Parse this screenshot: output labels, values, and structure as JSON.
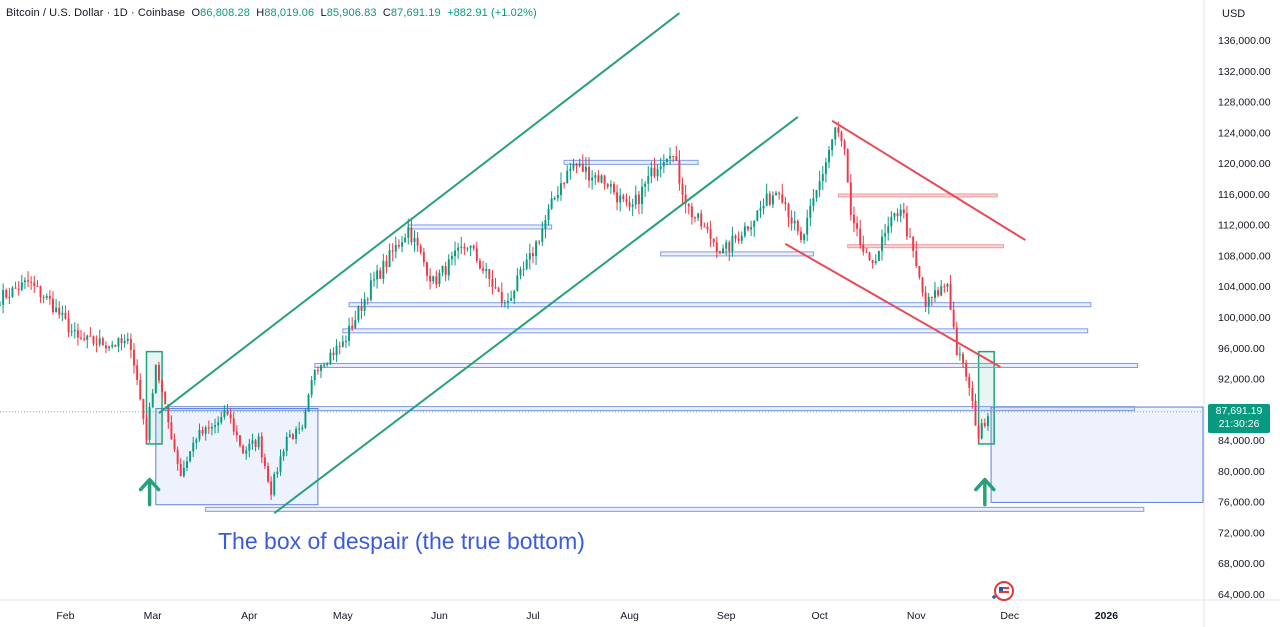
{
  "header": {
    "symbol": "Bitcoin / U.S. Dollar · 1D · Coinbase",
    "o_label": "O",
    "o_value": "86,808.28",
    "h_label": "H",
    "h_value": "88,019.06",
    "l_label": "L",
    "l_value": "85,906.83",
    "c_label": "C",
    "c_value": "87,691.19",
    "change": "+882.91 (+1.02%)"
  },
  "currency": "USD",
  "price_tag": {
    "price": "87,691.19",
    "countdown": "21:30:26"
  },
  "annotation": "The box of despair (the true bottom)",
  "colors": {
    "up": "#089981",
    "down": "#f23645",
    "channel": "#26a17b",
    "wedge": "#e84b55",
    "zone": "#5b7fe0"
  },
  "chart_data": {
    "type": "candlestick",
    "title": "",
    "xlabel": "",
    "ylabel": "",
    "ylim": [
      62000,
      140000
    ],
    "y_ticks": [
      "136,000.00",
      "132,000.00",
      "128,000.00",
      "124,000.00",
      "120,000.00",
      "116,000.00",
      "112,000.00",
      "108,000.00",
      "104,000.00",
      "100,000.00",
      "96,000.00",
      "92,000.00",
      "88,000.00",
      "84,000.00",
      "80,000.00",
      "76,000.00",
      "72,000.00",
      "68,000.00",
      "64,000.00"
    ],
    "y_tick_values": [
      136000,
      132000,
      128000,
      124000,
      120000,
      116000,
      112000,
      108000,
      104000,
      100000,
      96000,
      92000,
      88000,
      84000,
      80000,
      76000,
      72000,
      68000,
      64000
    ],
    "x_ticks": [
      "Feb",
      "Mar",
      "Apr",
      "May",
      "Jun",
      "Jul",
      "Aug",
      "Sep",
      "Oct",
      "Nov",
      "Dec",
      "2026"
    ],
    "x_tick_dates": [
      "2025-02-01",
      "2025-03-01",
      "2025-04-01",
      "2025-05-01",
      "2025-06-01",
      "2025-07-01",
      "2025-08-01",
      "2025-09-01",
      "2025-10-01",
      "2025-11-01",
      "2025-12-01",
      "2026-01-01"
    ],
    "x_range": [
      "2025-01-11",
      "2026-02-01"
    ],
    "grid": false,
    "close_path": [
      [
        "2025-01-11",
        102500
      ],
      [
        "2025-01-20",
        104500
      ],
      [
        "2025-01-27",
        102000
      ],
      [
        "2025-02-05",
        97000
      ],
      [
        "2025-02-15",
        96500
      ],
      [
        "2025-02-22",
        96500
      ],
      [
        "2025-02-27",
        84500
      ],
      [
        "2025-03-02",
        94000
      ],
      [
        "2025-03-05",
        88000
      ],
      [
        "2025-03-10",
        79500
      ],
      [
        "2025-03-15",
        84500
      ],
      [
        "2025-03-20",
        85500
      ],
      [
        "2025-03-25",
        87500
      ],
      [
        "2025-03-30",
        82500
      ],
      [
        "2025-04-04",
        84000
      ],
      [
        "2025-04-08",
        77500
      ],
      [
        "2025-04-13",
        84500
      ],
      [
        "2025-04-18",
        85000
      ],
      [
        "2025-04-22",
        93500
      ],
      [
        "2025-05-01",
        96500
      ],
      [
        "2025-05-10",
        104000
      ],
      [
        "2025-05-22",
        111500
      ],
      [
        "2025-05-30",
        104500
      ],
      [
        "2025-06-10",
        109500
      ],
      [
        "2025-06-22",
        101500
      ],
      [
        "2025-06-30",
        107500
      ],
      [
        "2025-07-10",
        117500
      ],
      [
        "2025-07-14",
        119800
      ],
      [
        "2025-07-25",
        117500
      ],
      [
        "2025-08-01",
        113500
      ],
      [
        "2025-08-10",
        120000
      ],
      [
        "2025-08-14",
        122000
      ],
      [
        "2025-08-20",
        114000
      ],
      [
        "2025-08-31",
        108300
      ],
      [
        "2025-09-10",
        113000
      ],
      [
        "2025-09-18",
        117000
      ],
      [
        "2025-09-25",
        109500
      ],
      [
        "2025-10-01",
        117500
      ],
      [
        "2025-10-06",
        124500
      ],
      [
        "2025-10-09",
        121500
      ],
      [
        "2025-10-11",
        112500
      ],
      [
        "2025-10-17",
        106500
      ],
      [
        "2025-10-27",
        114500
      ],
      [
        "2025-11-04",
        101500
      ],
      [
        "2025-11-11",
        104500
      ],
      [
        "2025-11-14",
        95500
      ],
      [
        "2025-11-17",
        92500
      ],
      [
        "2025-11-21",
        84500
      ],
      [
        "2025-11-24",
        87691
      ]
    ],
    "annotations": {
      "uptrend_channel": [
        {
          "from": [
            "2025-03-03",
            87500
          ],
          "to": [
            "2025-08-17",
            139500
          ]
        },
        {
          "from": [
            "2025-04-09",
            74500
          ],
          "to": [
            "2025-09-24",
            126000
          ]
        }
      ],
      "downtrend_wedge": [
        {
          "from": [
            "2025-10-05",
            125500
          ],
          "to": [
            "2025-12-06",
            110000
          ]
        },
        {
          "from": [
            "2025-09-20",
            109500
          ],
          "to": [
            "2025-11-28",
            93500
          ]
        }
      ],
      "resistance_lines": [
        {
          "price": 111700,
          "from": "2025-05-22",
          "to": "2025-07-07"
        },
        {
          "price": 120100,
          "from": "2025-07-11",
          "to": "2025-08-23"
        },
        {
          "price": 108200,
          "from": "2025-08-11",
          "to": "2025-09-29"
        },
        {
          "price": 101600,
          "from": "2025-05-03",
          "to": "2025-12-27"
        },
        {
          "price": 98200,
          "from": "2025-05-01",
          "to": "2025-12-26"
        },
        {
          "price": 93700,
          "from": "2025-04-22",
          "to": "2026-01-11"
        },
        {
          "price": 88100,
          "from": "2025-03-05",
          "to": "2026-01-10"
        },
        {
          "price": 75000,
          "from": "2025-03-18",
          "to": "2026-01-13"
        }
      ],
      "red_levels": [
        {
          "price": 115800,
          "from": "2025-10-07",
          "to": "2025-11-27"
        },
        {
          "price": 109200,
          "from": "2025-10-10",
          "to": "2025-11-29"
        }
      ],
      "despair_boxes": [
        {
          "from": "2025-03-02",
          "to": "2025-04-23",
          "top": 88100,
          "bottom": 75600
        },
        {
          "from": "2025-11-25",
          "to": "2026-02-01",
          "top": 88300,
          "bottom": 75900
        }
      ],
      "reversal_boxes": [
        {
          "from": "2025-02-27",
          "to": "2025-03-04",
          "top": 95500,
          "bottom": 83500
        },
        {
          "from": "2025-11-21",
          "to": "2025-11-26",
          "top": 95500,
          "bottom": 83500
        }
      ],
      "arrows": [
        {
          "date": "2025-02-28",
          "price": 79000
        },
        {
          "date": "2025-11-23",
          "price": 79000
        }
      ]
    }
  }
}
